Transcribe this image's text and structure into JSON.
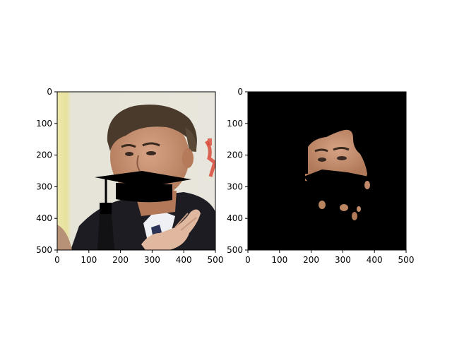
{
  "figure": {
    "panels": [
      {
        "name": "left",
        "image": "face-photo-with-graduation-cap-overlay",
        "xlim": [
          0,
          500
        ],
        "ylim": [
          500,
          0
        ],
        "xticks": [
          "0",
          "100",
          "200",
          "300",
          "400",
          "500"
        ],
        "yticks": [
          "0",
          "100",
          "200",
          "300",
          "400",
          "500"
        ]
      },
      {
        "name": "right",
        "image": "skin-mask-on-black",
        "xlim": [
          0,
          500
        ],
        "ylim": [
          500,
          0
        ],
        "xticks": [
          "0",
          "100",
          "200",
          "300",
          "400",
          "500"
        ],
        "yticks": [
          "0",
          "100",
          "200",
          "300",
          "400",
          "500"
        ]
      }
    ]
  },
  "colors": {
    "background": "#ffffff",
    "axis": "#000000",
    "mask_background": "#000000",
    "skin": "#c89070",
    "hair": "#4a3a2c",
    "suit": "#1c1c22"
  }
}
